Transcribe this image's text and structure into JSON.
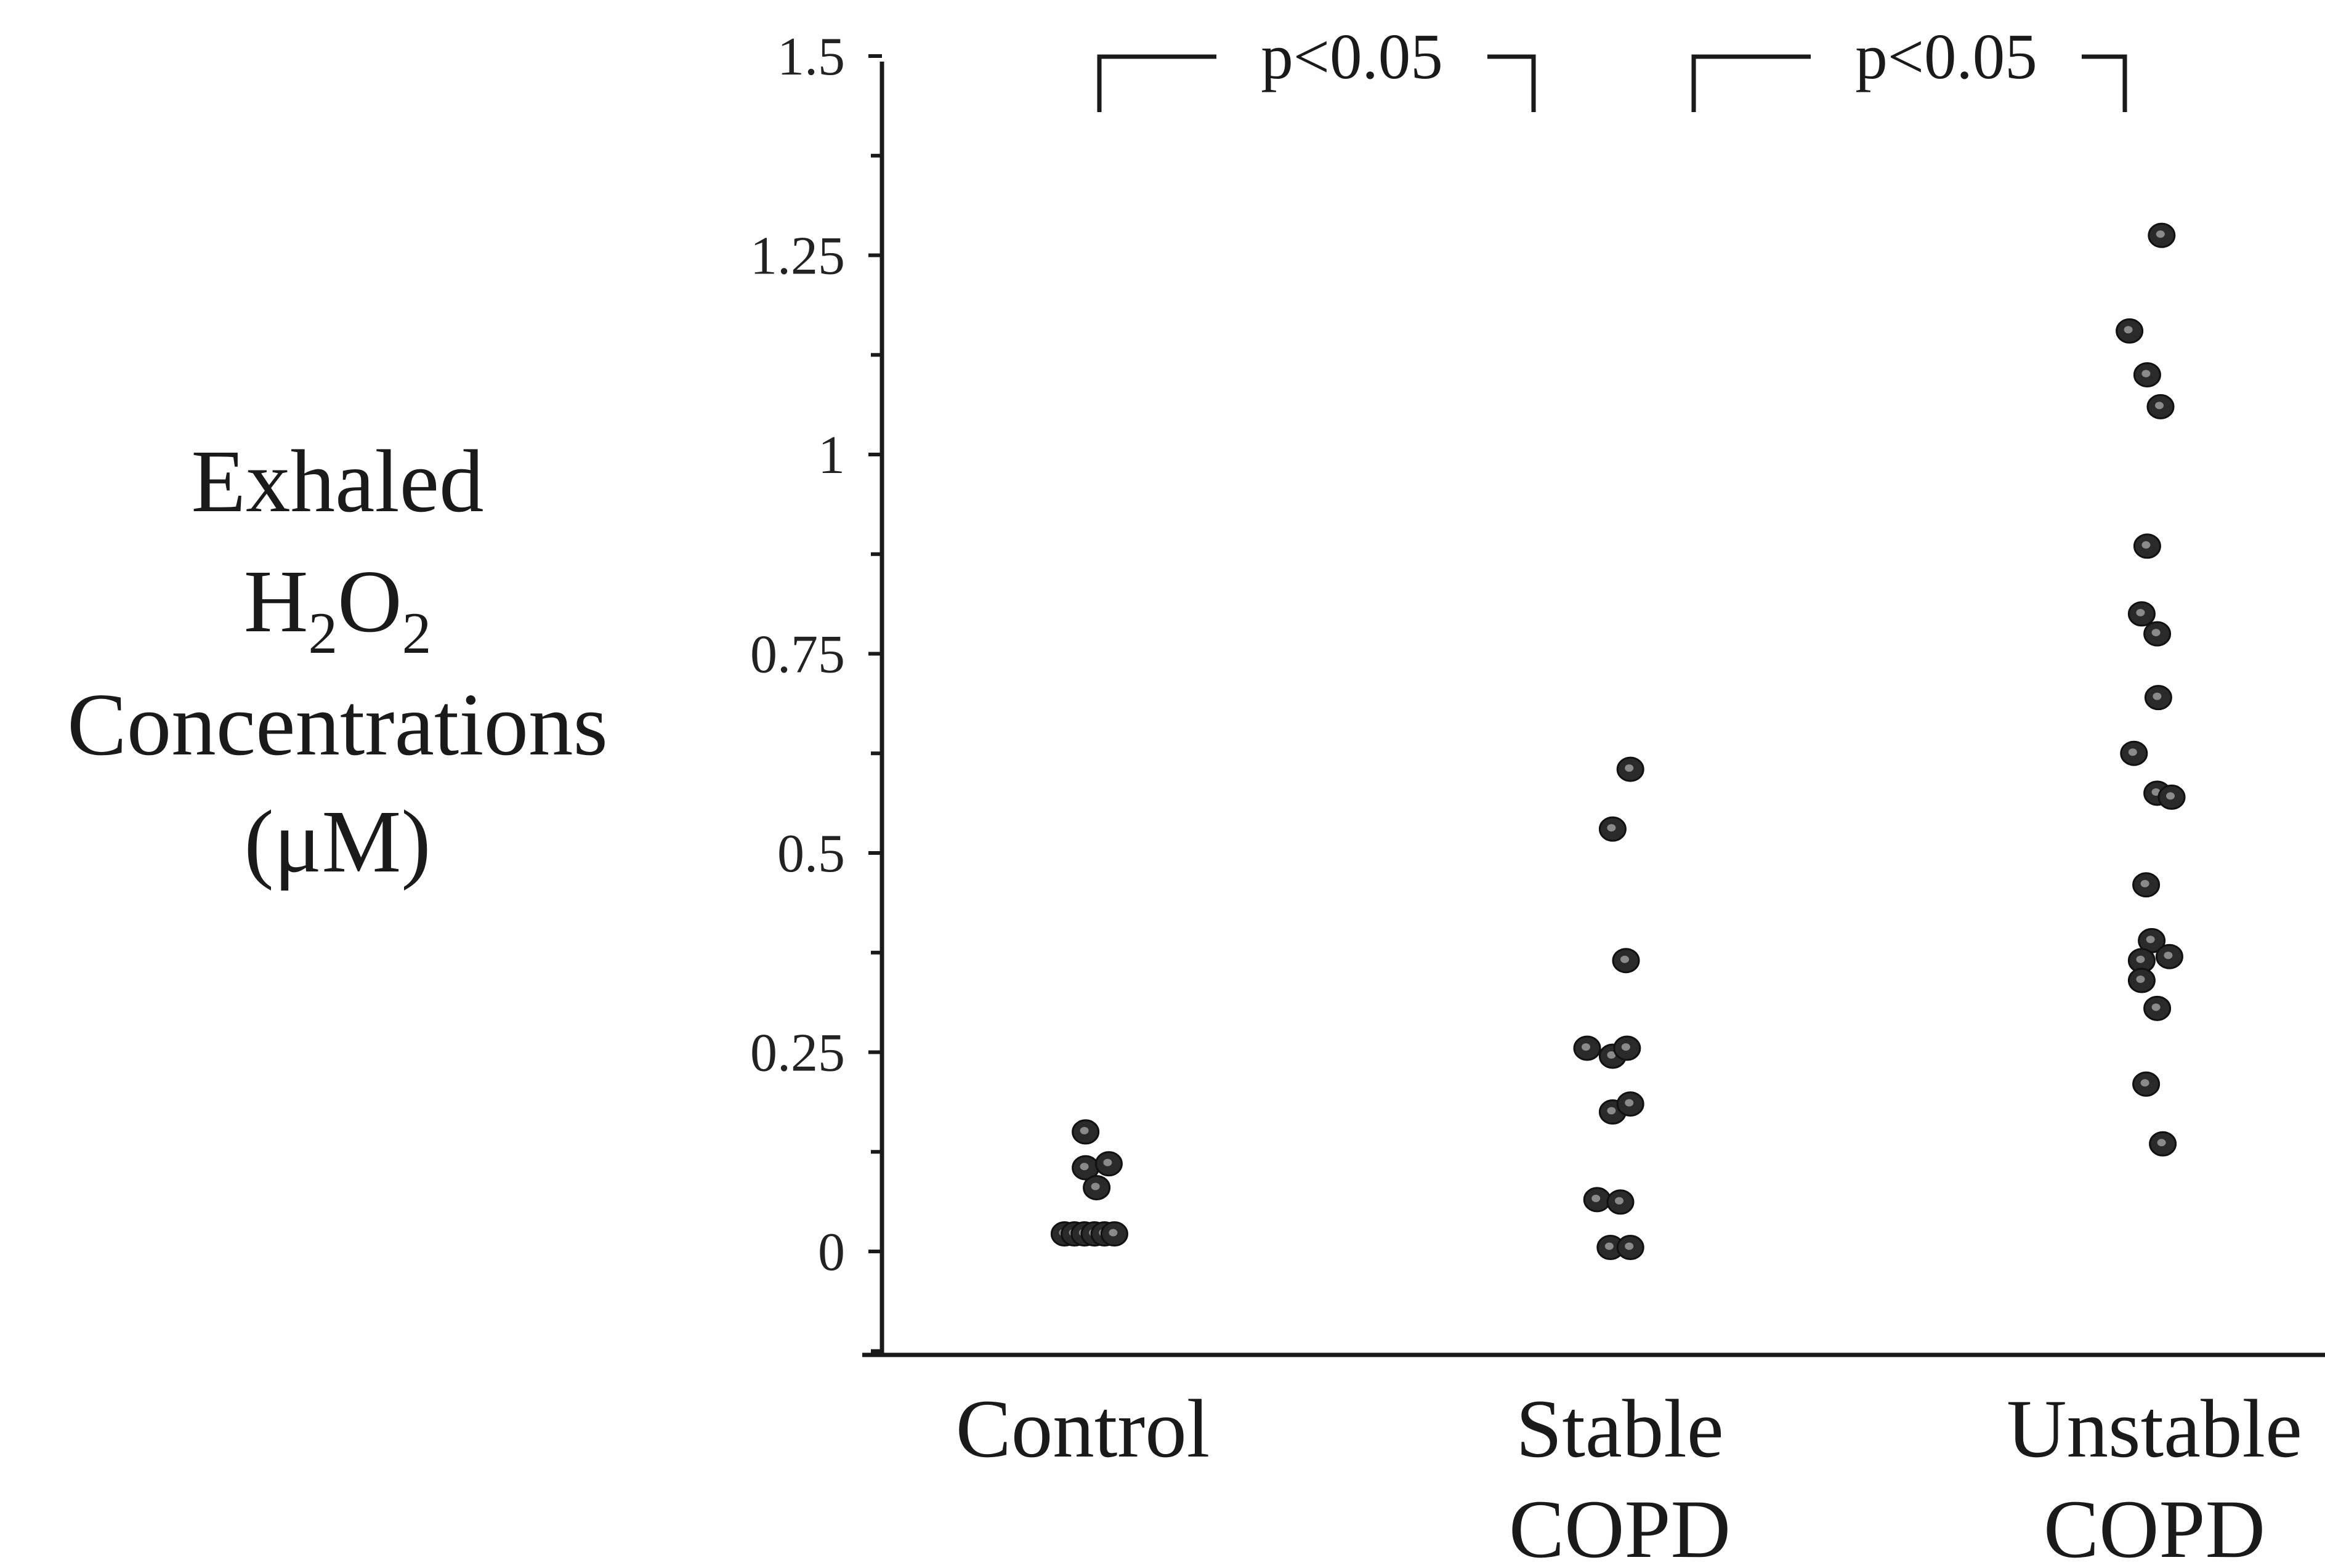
{
  "chart_data": {
    "type": "scatter",
    "ylabel_lines": [
      "Exhaled",
      "H",
      "2",
      "O",
      "2",
      "Concentrations",
      "(μM)"
    ],
    "ylim": [
      -0.125,
      1.5
    ],
    "yticks": [
      0,
      0.25,
      0.5,
      0.75,
      1,
      1.25,
      1.5
    ],
    "ytick_labels": [
      "0",
      "0.25",
      "0.5",
      "0.75",
      "1",
      "1.25",
      "1.5"
    ],
    "categories": [
      {
        "line1": "Control",
        "line2": ""
      },
      {
        "line1": "Stable",
        "line2": "COPD"
      },
      {
        "line1": "Unstable",
        "line2": "COPD"
      }
    ],
    "comparisons": [
      {
        "from": 0,
        "to": 1,
        "label": "p<0.05"
      },
      {
        "from": 1,
        "to": 2,
        "label": "p<0.05"
      }
    ],
    "series": [
      {
        "category": "Control",
        "points": [
          {
            "offset": -0.03,
            "y": 0.15
          },
          {
            "offset": -0.03,
            "y": 0.105
          },
          {
            "offset": 0.18,
            "y": 0.11
          },
          {
            "offset": 0.07,
            "y": 0.08
          },
          {
            "offset": -0.22,
            "y": 0.022
          },
          {
            "offset": -0.13,
            "y": 0.022
          },
          {
            "offset": -0.04,
            "y": 0.022
          },
          {
            "offset": 0.05,
            "y": 0.022
          },
          {
            "offset": 0.14,
            "y": 0.022
          },
          {
            "offset": 0.23,
            "y": 0.022
          }
        ]
      },
      {
        "category": "Stable COPD",
        "points": [
          {
            "offset": 0.04,
            "y": 0.605
          },
          {
            "offset": -0.12,
            "y": 0.53
          },
          {
            "offset": 0.0,
            "y": 0.365
          },
          {
            "offset": -0.35,
            "y": 0.255
          },
          {
            "offset": -0.12,
            "y": 0.245
          },
          {
            "offset": 0.01,
            "y": 0.255
          },
          {
            "offset": -0.12,
            "y": 0.175
          },
          {
            "offset": 0.04,
            "y": 0.185
          },
          {
            "offset": -0.26,
            "y": 0.065
          },
          {
            "offset": -0.05,
            "y": 0.062
          },
          {
            "offset": -0.14,
            "y": 0.005
          },
          {
            "offset": 0.04,
            "y": 0.005
          }
        ]
      },
      {
        "category": "Unstable COPD",
        "points": [
          {
            "offset": 0.01,
            "y": 1.275
          },
          {
            "offset": -0.28,
            "y": 1.155
          },
          {
            "offset": -0.12,
            "y": 1.1
          },
          {
            "offset": 0.0,
            "y": 1.06
          },
          {
            "offset": -0.12,
            "y": 0.885
          },
          {
            "offset": -0.17,
            "y": 0.8
          },
          {
            "offset": -0.03,
            "y": 0.775
          },
          {
            "offset": -0.02,
            "y": 0.695
          },
          {
            "offset": -0.24,
            "y": 0.625
          },
          {
            "offset": -0.03,
            "y": 0.575
          },
          {
            "offset": 0.1,
            "y": 0.57
          },
          {
            "offset": -0.13,
            "y": 0.46
          },
          {
            "offset": -0.08,
            "y": 0.39
          },
          {
            "offset": -0.17,
            "y": 0.365
          },
          {
            "offset": 0.08,
            "y": 0.37
          },
          {
            "offset": -0.17,
            "y": 0.34
          },
          {
            "offset": -0.03,
            "y": 0.305
          },
          {
            "offset": -0.13,
            "y": 0.21
          },
          {
            "offset": 0.02,
            "y": 0.135
          }
        ]
      }
    ]
  }
}
